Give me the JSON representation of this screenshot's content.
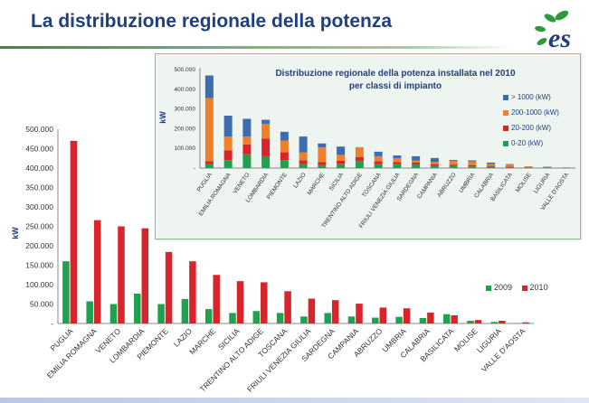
{
  "page": {
    "title": "La distribuzione regionale della potenza",
    "logo_text": "es",
    "colors": {
      "title": "#1f3f7f",
      "rule": "#3a8a3a"
    }
  },
  "chart_data": [
    {
      "type": "bar",
      "title": "",
      "ylabel": "kW",
      "xlabel": "",
      "ylim": [
        0,
        500000
      ],
      "yticks": [
        "-",
        "50.000",
        "100.000",
        "150.000",
        "200.000",
        "250.000",
        "300.000",
        "350.000",
        "400.000",
        "450.000",
        "500.000"
      ],
      "categories": [
        "PUGLIA",
        "EMILIA ROMAGNA",
        "VENETO",
        "LOMBARDIA",
        "PIEMONTE",
        "LAZIO",
        "MARCHE",
        "SICILIA",
        "TRENTINO ALTO ADIGE",
        "TOSCANA",
        "FRIULI VENEZIA GIULIA",
        "SARDEGNA",
        "CAMPANIA",
        "ABRUZZO",
        "UMBRIA",
        "CALABRIA",
        "BASILICATA",
        "MOLISE",
        "LIGURIA",
        "VALLE D'AOSTA"
      ],
      "series": [
        {
          "name": "2009",
          "color": "#21a050",
          "values": [
            160000,
            57000,
            50000,
            77000,
            50000,
            63000,
            37000,
            27000,
            32000,
            27000,
            18000,
            27000,
            18000,
            15000,
            17000,
            14000,
            24000,
            7000,
            4000,
            1000
          ]
        },
        {
          "name": "2010",
          "color": "#d8242b",
          "values": [
            470000,
            266000,
            250000,
            245000,
            184000,
            160000,
            125000,
            109000,
            106000,
            83000,
            64000,
            60000,
            51000,
            41000,
            39000,
            28000,
            21000,
            9000,
            7000,
            3000
          ]
        }
      ],
      "legend": "bottom-right",
      "grid": false
    },
    {
      "type": "bar",
      "stacked": true,
      "title": "Distribuzione regionale della potenza installata nel 2010 per classi di impianto",
      "title_lines": [
        "Distribuzione regionale della potenza installata nel 2010",
        "per classi di impianto"
      ],
      "ylabel": "kW",
      "xlabel": "",
      "ylim": [
        0,
        500000
      ],
      "yticks": [
        "-",
        "100.000",
        "200.000",
        "300.000",
        "400.000",
        "500.000"
      ],
      "categories": [
        "PUGLIA",
        "EMILIA ROMAGNA",
        "VENETO",
        "LOMBARDIA",
        "PIEMONTE",
        "LAZIO",
        "MARCHE",
        "SICILIA",
        "TRENTINO ALTO ADIGE",
        "TOSCANA",
        "FRIULI VENEZIA GIULIA",
        "SARDEGNA",
        "CAMPANIA",
        "ABRUZZO",
        "UMBRIA",
        "CALABRIA",
        "BASILICATA",
        "MOLISE",
        "LIGURIA",
        "VALLE D'AOSTA"
      ],
      "series": [
        {
          "name": "0-20 (kW)",
          "color": "#21a050",
          "values": [
            20000,
            40000,
            70000,
            60000,
            40000,
            20000,
            15000,
            22000,
            35000,
            20000,
            20000,
            18000,
            12000,
            10000,
            8000,
            7000,
            5000,
            2000,
            3000,
            1000
          ]
        },
        {
          "name": "20-200 (kW)",
          "color": "#d8242b",
          "values": [
            15000,
            50000,
            50000,
            90000,
            40000,
            20000,
            15000,
            15000,
            20000,
            15000,
            10000,
            10000,
            8000,
            6000,
            6000,
            4000,
            3000,
            2000,
            1000,
            500
          ]
        },
        {
          "name": "200-1000 (kW)",
          "color": "#f07f2a",
          "values": [
            320000,
            70000,
            40000,
            75000,
            60000,
            40000,
            75000,
            30000,
            50000,
            25000,
            20000,
            10000,
            12000,
            20000,
            20000,
            10000,
            12000,
            4000,
            1000,
            500
          ]
        },
        {
          "name": "> 1000 (kW)",
          "color": "#3c6db0",
          "values": [
            115000,
            106000,
            90000,
            20000,
            44000,
            80000,
            20000,
            42000,
            1000,
            23000,
            14000,
            22000,
            19000,
            5000,
            5000,
            7000,
            1000,
            1000,
            2000,
            1000
          ]
        }
      ],
      "legend": "right"
    }
  ]
}
